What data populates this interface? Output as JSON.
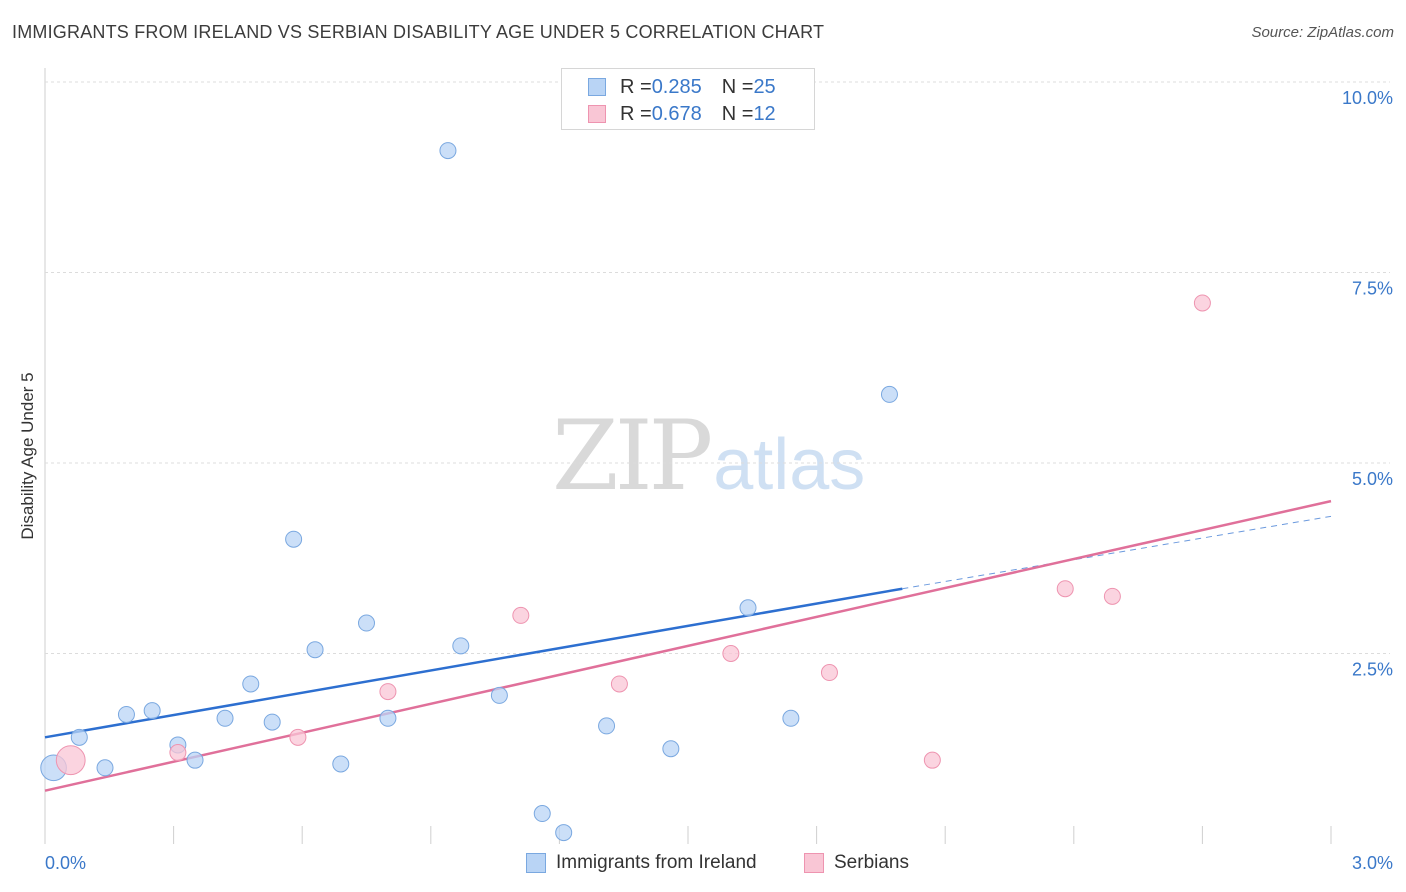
{
  "title": "IMMIGRANTS FROM IRELAND VS SERBIAN DISABILITY AGE UNDER 5 CORRELATION CHART",
  "source": "Source: ZipAtlas.com",
  "watermark": {
    "part1": "ZIP",
    "part2": "atlas"
  },
  "legend": {
    "rows": [
      {
        "r_label": "R = ",
        "r_value": "0.285",
        "n_label": "N = ",
        "n_value": "25"
      },
      {
        "r_label": "R = ",
        "r_value": "0.678",
        "n_label": "N = ",
        "n_value": "12"
      }
    ]
  },
  "colors": {
    "ireland_fill": "#b9d4f5",
    "ireland_stroke": "#7aa8e0",
    "ireland_line": "#2d6fd0",
    "serbian_fill": "#f9c6d5",
    "serbian_stroke": "#ee94b0",
    "serbian_line": "#e0709a",
    "tick_label": "#3a78c9",
    "grid": "#dcdcdc"
  },
  "chart_data": {
    "type": "scatter",
    "title": "IMMIGRANTS FROM IRELAND VS SERBIAN DISABILITY AGE UNDER 5 CORRELATION CHART",
    "xlabel": "",
    "ylabel": "Disability Age Under 5",
    "xlim": [
      0,
      3.0
    ],
    "ylim": [
      0,
      10.0
    ],
    "x_tick_labels": [
      "0.0%",
      "3.0%"
    ],
    "y_ticks": [
      2.5,
      5.0,
      7.5,
      10.0
    ],
    "y_tick_labels": [
      "2.5%",
      "5.0%",
      "7.5%",
      "10.0%"
    ],
    "grid": "horizontal dashed",
    "legend_position": "top-center",
    "series": [
      {
        "name": "Immigrants from Ireland",
        "points": [
          [
            0.02,
            1.0,
            1.6
          ],
          [
            0.08,
            1.4,
            1
          ],
          [
            0.14,
            1.0,
            1
          ],
          [
            0.19,
            1.7,
            1
          ],
          [
            0.25,
            1.75,
            1
          ],
          [
            0.31,
            1.3,
            1
          ],
          [
            0.35,
            1.1,
            1
          ],
          [
            0.42,
            1.65,
            1
          ],
          [
            0.48,
            2.1,
            1
          ],
          [
            0.53,
            1.6,
            1
          ],
          [
            0.58,
            4.0,
            1
          ],
          [
            0.63,
            2.55,
            1
          ],
          [
            0.69,
            1.05,
            1
          ],
          [
            0.75,
            2.9,
            1
          ],
          [
            0.8,
            1.65,
            1
          ],
          [
            0.94,
            9.1,
            1
          ],
          [
            0.97,
            2.6,
            1
          ],
          [
            1.06,
            1.95,
            1
          ],
          [
            1.16,
            0.4,
            1
          ],
          [
            1.21,
            0.15,
            1
          ],
          [
            1.31,
            1.55,
            1
          ],
          [
            1.46,
            1.25,
            1
          ],
          [
            1.64,
            3.1,
            1
          ],
          [
            1.74,
            1.65,
            1
          ],
          [
            1.97,
            5.9,
            1
          ]
        ],
        "trend": {
          "x_start": 0.0,
          "y_start": 1.4,
          "x_solid_end": 2.0,
          "y_solid_end": 3.35,
          "x_dash_end": 3.0,
          "y_dash_end": 4.3
        }
      },
      {
        "name": "Serbians",
        "points": [
          [
            0.06,
            1.1,
            1.8
          ],
          [
            0.31,
            1.2,
            1
          ],
          [
            0.59,
            1.4,
            1
          ],
          [
            0.8,
            2.0,
            1
          ],
          [
            1.11,
            3.0,
            1
          ],
          [
            1.34,
            2.1,
            1
          ],
          [
            1.6,
            2.5,
            1
          ],
          [
            1.83,
            2.25,
            1
          ],
          [
            2.07,
            1.1,
            1
          ],
          [
            2.38,
            3.35,
            1
          ],
          [
            2.49,
            3.25,
            1
          ],
          [
            2.7,
            7.1,
            1
          ]
        ],
        "trend": {
          "x_start": 0.0,
          "y_start": 0.7,
          "x_end": 3.0,
          "y_end": 4.5
        }
      }
    ]
  }
}
